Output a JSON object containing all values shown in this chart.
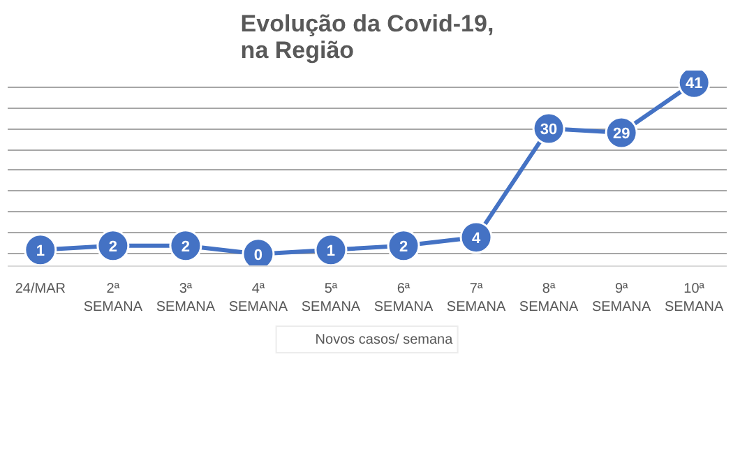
{
  "chart_data": {
    "type": "line",
    "title": "Evolução da Covid-19,\nna Região",
    "categories": [
      "24/MAR",
      "2ª SEMANA",
      "3ª SEMANA",
      "4ª SEMANA",
      "5ª SEMANA",
      "6ª SEMANA",
      "7ª SEMANA",
      "8ª SEMANA",
      "9ª SEMANA",
      "10ª SEMANA"
    ],
    "series": [
      {
        "name": "Novos casos/ semana",
        "color": "#4472c4",
        "values": [
          1,
          2,
          2,
          0,
          1,
          2,
          4,
          30,
          29,
          41
        ]
      }
    ],
    "tick_labels": "x",
    "grid": "y",
    "legend": "bottom",
    "marker": "circle",
    "line_style": "solid",
    "data_labels": true
  }
}
